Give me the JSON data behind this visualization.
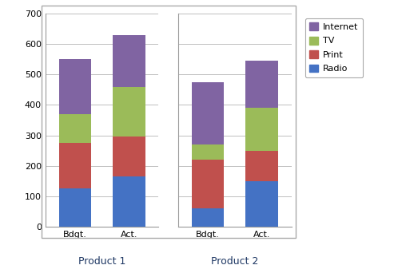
{
  "groups": [
    "Product 1",
    "Product 2"
  ],
  "bars": [
    "Bdgt.",
    "Act.",
    "Bdgt.",
    "Act."
  ],
  "radio": [
    125,
    165,
    60,
    150
  ],
  "print_": [
    150,
    130,
    160,
    100
  ],
  "tv": [
    95,
    165,
    50,
    140
  ],
  "internet": [
    180,
    170,
    205,
    155
  ],
  "colors": {
    "radio": "#4472C4",
    "print_": "#C0504D",
    "tv": "#9BBB59",
    "internet": "#8064A2"
  },
  "ylim": [
    0,
    700
  ],
  "yticks": [
    0,
    100,
    200,
    300,
    400,
    500,
    600,
    700
  ],
  "bg_color": "#FFFFFF",
  "plot_bg": "#FFFFFF",
  "grid_color": "#BFBFBF",
  "bar_width": 0.6,
  "group_label_fontsize": 9,
  "tick_fontsize": 8,
  "legend_fontsize": 8,
  "outer_border_color": "#AAAAAA"
}
